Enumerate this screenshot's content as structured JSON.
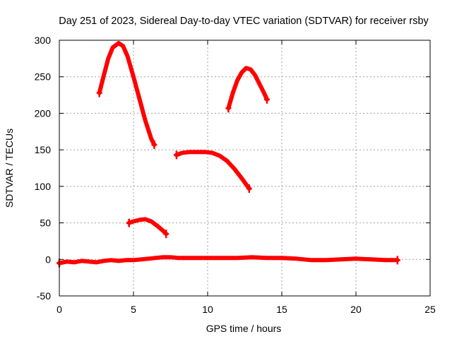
{
  "chart_data": {
    "type": "scatter",
    "title": "Day 251 of 2023, Sidereal Day-to-day VTEC variation (SDTVAR) for receiver rsby",
    "xlabel": "GPS time / hours",
    "ylabel": "SDTVAR / TECUs",
    "xlim": [
      0,
      25
    ],
    "ylim": [
      -50,
      300
    ],
    "grid": true,
    "x_ticks": [
      "0",
      "5",
      "10",
      "15",
      "20",
      "25"
    ],
    "y_ticks": [
      "-50",
      "0",
      "50",
      "100",
      "150",
      "200",
      "250",
      "300"
    ],
    "series_color": "#ff0000",
    "series": [
      {
        "name": "baseline",
        "x": [
          0.0,
          0.5,
          1.0,
          1.5,
          2.0,
          2.5,
          3.0,
          3.5,
          4.0,
          4.5,
          5.0,
          5.5,
          6.0,
          6.5,
          7.0,
          7.5,
          8.0,
          9.0,
          10.0,
          11.0,
          12.0,
          13.0,
          14.0,
          15.0,
          16.0,
          17.0,
          18.0,
          19.0,
          20.0,
          21.0,
          22.0,
          22.8
        ],
        "y": [
          -5,
          -3,
          -4,
          -2,
          -3,
          -4,
          -2,
          -1,
          -2,
          -1,
          -1,
          0,
          1,
          2,
          3,
          3,
          2,
          2,
          2,
          2,
          2,
          3,
          2,
          2,
          1,
          -1,
          -1,
          0,
          1,
          0,
          -1,
          -1
        ]
      },
      {
        "name": "arc-1",
        "x": [
          2.7,
          3.0,
          3.3,
          3.6,
          4.0,
          4.3,
          4.6,
          5.0,
          5.4,
          5.8,
          6.2,
          6.4
        ],
        "y": [
          228,
          252,
          275,
          290,
          296,
          292,
          278,
          250,
          220,
          190,
          165,
          157
        ]
      },
      {
        "name": "arc-2",
        "x": [
          4.7,
          5.0,
          5.4,
          5.8,
          6.2,
          6.6,
          7.0,
          7.2
        ],
        "y": [
          50,
          52,
          54,
          55,
          52,
          46,
          39,
          35
        ]
      },
      {
        "name": "arc-3",
        "x": [
          7.9,
          8.3,
          8.8,
          9.3,
          9.8,
          10.3,
          10.8,
          11.3,
          11.8,
          12.3,
          12.8
        ],
        "y": [
          143,
          146,
          147,
          147,
          147,
          146,
          142,
          135,
          124,
          111,
          97
        ]
      },
      {
        "name": "arc-4",
        "x": [
          11.4,
          11.7,
          12.0,
          12.3,
          12.6,
          12.9,
          13.2,
          13.5,
          13.8,
          14.0
        ],
        "y": [
          207,
          228,
          245,
          256,
          262,
          260,
          252,
          240,
          228,
          219
        ]
      }
    ]
  }
}
